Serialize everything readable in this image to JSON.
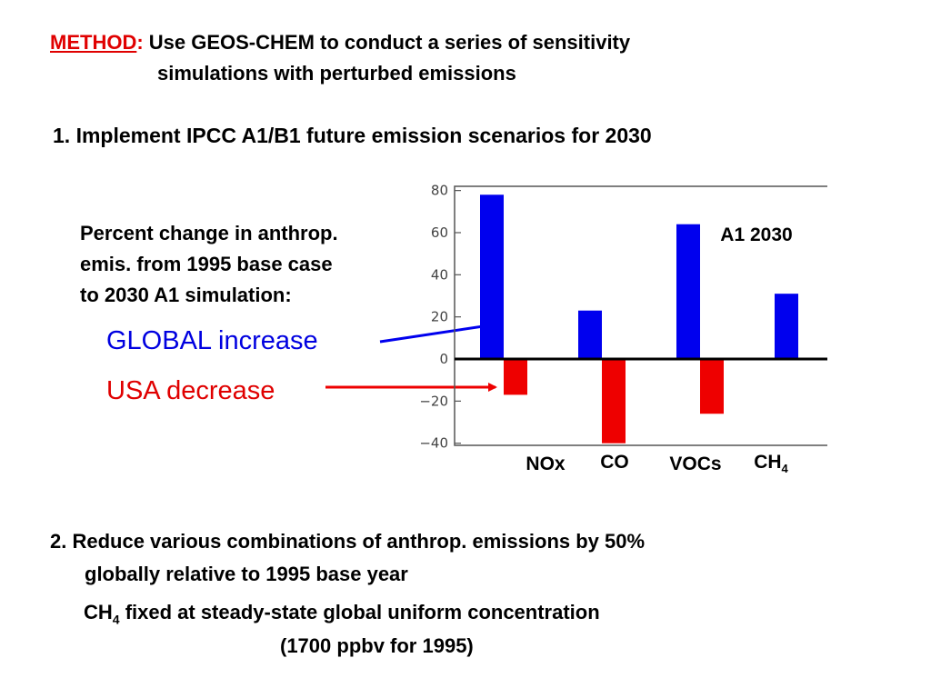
{
  "method": {
    "label": "METHOD",
    "colon": ":",
    "line1": " Use GEOS-CHEM to conduct a series of sensitivity",
    "line2": "simulations with perturbed emissions"
  },
  "item1": "1. Implement IPCC A1/B1 future emission scenarios for 2030",
  "description": [
    "Percent change in anthrop.",
    "emis. from 1995 base case",
    "to 2030 A1 simulation:"
  ],
  "global_label": "GLOBAL increase",
  "usa_label": "USA decrease",
  "item2": {
    "line1": "2.  Reduce various combinations of anthrop. emissions by 50%",
    "line2": "globally relative to 1995 base year"
  },
  "ch4_note": {
    "prefix": "CH",
    "sub": "4",
    "text": " fixed at steady-state global uniform concentration",
    "line2": "(1700 ppbv for 1995)"
  },
  "colors": {
    "global": "#0000ee",
    "usa": "#ee0000",
    "method": "#e00000"
  },
  "chart_data": {
    "type": "bar",
    "annotation": "A1 2030",
    "categories": [
      "NOx",
      "CO",
      "VOCs",
      "CH4"
    ],
    "category_labels": [
      {
        "main": "NOx",
        "sub": ""
      },
      {
        "main": "CO",
        "sub": ""
      },
      {
        "main": "VOCs",
        "sub": ""
      },
      {
        "main": "CH",
        "sub": "4"
      }
    ],
    "series": [
      {
        "values": [
          78,
          23,
          64,
          31
        ],
        "color": "#0000ee"
      },
      {
        "values": [
          -17,
          -40,
          -26,
          null
        ],
        "color": "#ee0000"
      }
    ],
    "yticks": [
      80,
      60,
      40,
      20,
      0,
      -20,
      -40
    ],
    "ytick_labels": [
      "80",
      "60",
      "40",
      "20",
      "0",
      "−20",
      "−40"
    ],
    "ylim": [
      -41,
      82
    ],
    "grid": false
  }
}
